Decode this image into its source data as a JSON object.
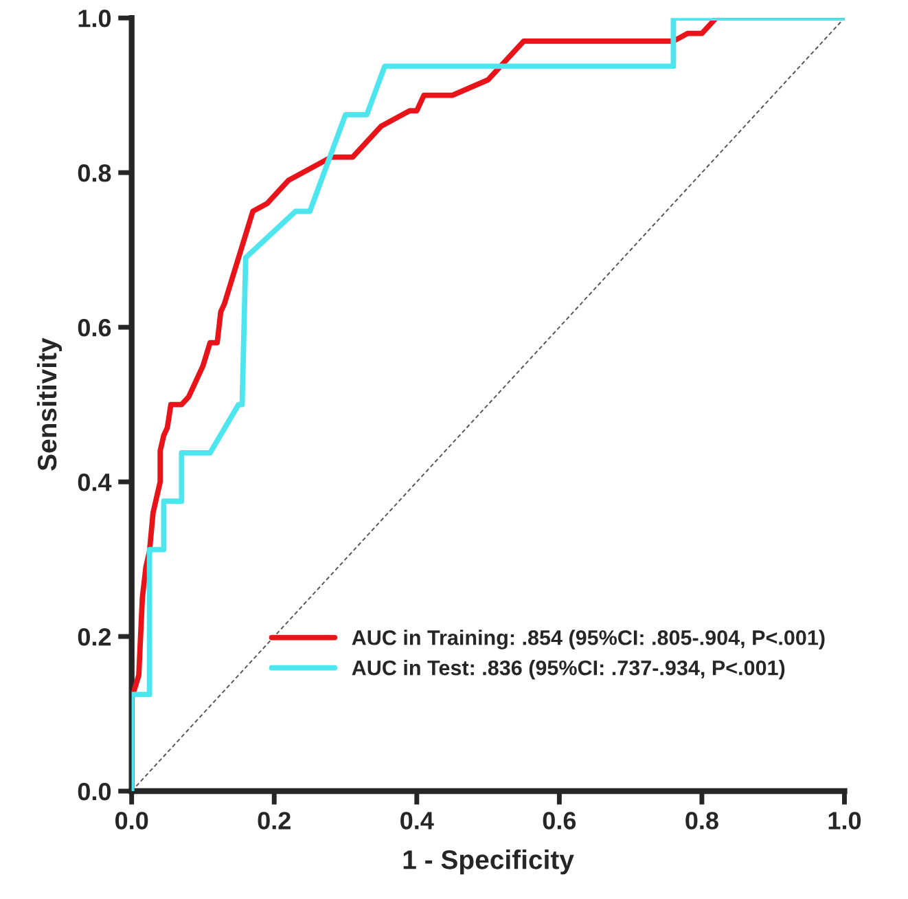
{
  "chart_data": {
    "type": "line",
    "xlabel": "1 - Specificity",
    "ylabel": "Sensitivity",
    "xlim": [
      0,
      1
    ],
    "ylim": [
      0,
      1
    ],
    "xticks": [
      {
        "value": 0,
        "label": "0.0"
      },
      {
        "value": 0.2,
        "label": "0.2"
      },
      {
        "value": 0.4,
        "label": "0.4"
      },
      {
        "value": 0.6,
        "label": "0.6"
      },
      {
        "value": 0.8,
        "label": "0.8"
      },
      {
        "value": 1,
        "label": "1.0"
      }
    ],
    "yticks": [
      {
        "value": 0,
        "label": "0.0"
      },
      {
        "value": 0.2,
        "label": "0.2"
      },
      {
        "value": 0.4,
        "label": "0.4"
      },
      {
        "value": 0.6,
        "label": "0.6"
      },
      {
        "value": 0.8,
        "label": "0.8"
      },
      {
        "value": 1,
        "label": "1.0"
      }
    ],
    "grid": false,
    "legend": "bottom right",
    "series": [
      {
        "name": "AUC in Training: .854 (95%CI: .805-.904, P<.001)",
        "color": "#e8141a",
        "x": [
          0,
          0,
          0.01,
          0.015,
          0.02,
          0.025,
          0.03,
          0.04,
          0.04,
          0.045,
          0.05,
          0.055,
          0.07,
          0.08,
          0.1,
          0.11,
          0.12,
          0.125,
          0.13,
          0.15,
          0.17,
          0.19,
          0.2,
          0.22,
          0.24,
          0.26,
          0.28,
          0.31,
          0.33,
          0.35,
          0.37,
          0.39,
          0.4,
          0.41,
          0.45,
          0.5,
          0.55,
          0.76,
          0.78,
          0.8,
          0.82,
          1
        ],
        "values": [
          0,
          0.12,
          0.15,
          0.25,
          0.29,
          0.31,
          0.36,
          0.4,
          0.44,
          0.46,
          0.47,
          0.5,
          0.5,
          0.51,
          0.55,
          0.58,
          0.58,
          0.62,
          0.63,
          0.69,
          0.75,
          0.76,
          0.77,
          0.79,
          0.8,
          0.81,
          0.82,
          0.82,
          0.84,
          0.86,
          0.87,
          0.88,
          0.88,
          0.9,
          0.9,
          0.92,
          0.97,
          0.97,
          0.98,
          0.98,
          1,
          1
        ]
      },
      {
        "name": "AUC in Test: .836 (95%CI: .737-.934, P<.001)",
        "color": "#4ee6ee",
        "x": [
          0,
          0,
          0.025,
          0.025,
          0.045,
          0.045,
          0.07,
          0.07,
          0.11,
          0.15,
          0.155,
          0.16,
          0.23,
          0.25,
          0.3,
          0.33,
          0.355,
          0.76,
          0.76,
          1
        ],
        "values": [
          0,
          0.125,
          0.125,
          0.3125,
          0.3125,
          0.375,
          0.375,
          0.4375,
          0.4375,
          0.5,
          0.5,
          0.69,
          0.75,
          0.75,
          0.875,
          0.875,
          0.9375,
          0.9375,
          1,
          1
        ]
      },
      {
        "color": "#555555",
        "line_style": "dashed",
        "x": [
          0,
          1
        ],
        "values": [
          0,
          1
        ]
      }
    ]
  }
}
